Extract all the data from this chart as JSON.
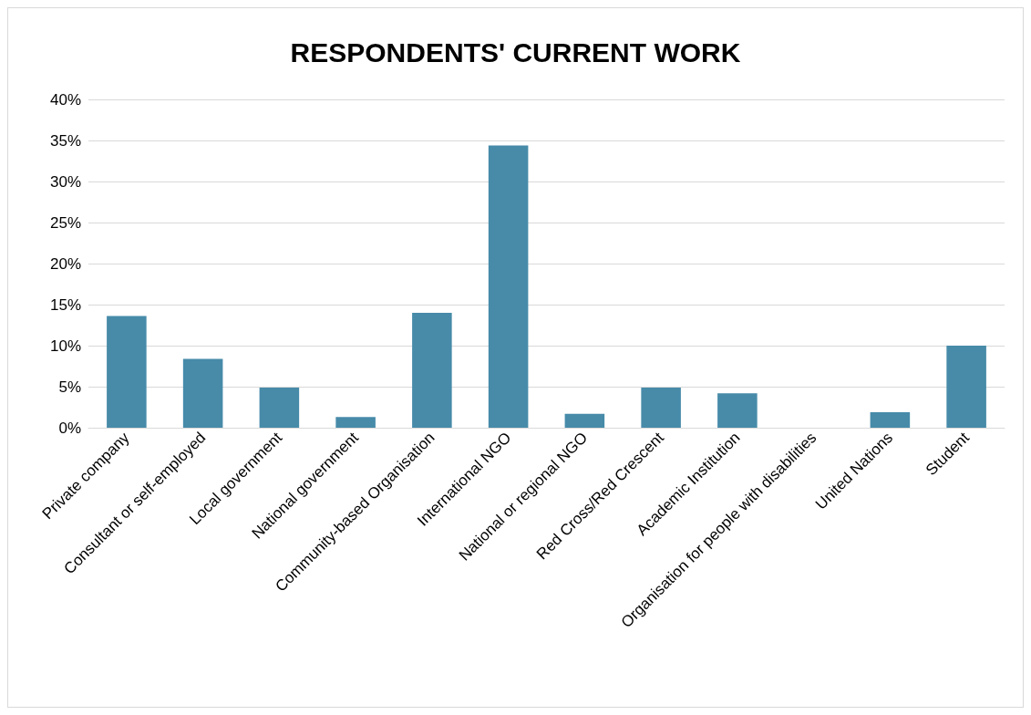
{
  "chart_data": {
    "type": "bar",
    "title": "RESPONDENTS' CURRENT WORK",
    "categories": [
      "Private company",
      "Consultant or self-employed",
      "Local government",
      "National government",
      "Community-based Organisation",
      "International NGO",
      "National or regional NGO",
      "Red Cross/Red Crescent",
      "Academic Institution",
      "Organisation for people with disabilities",
      "United Nations",
      "Student"
    ],
    "values": [
      13.6,
      8.4,
      4.9,
      1.3,
      14.0,
      34.4,
      1.7,
      4.9,
      4.2,
      0,
      1.9,
      10.0
    ],
    "color": "#478ba9",
    "ylim": [
      0,
      40
    ],
    "yticks": [
      {
        "value": 0,
        "label": "0%"
      },
      {
        "value": 5,
        "label": "5%"
      },
      {
        "value": 10,
        "label": "10%"
      },
      {
        "value": 15,
        "label": "15%"
      },
      {
        "value": 20,
        "label": "20%"
      },
      {
        "value": 25,
        "label": "25%"
      },
      {
        "value": 30,
        "label": "30%"
      },
      {
        "value": 35,
        "label": "35%"
      },
      {
        "value": 40,
        "label": "40%"
      }
    ],
    "grid": true
  }
}
